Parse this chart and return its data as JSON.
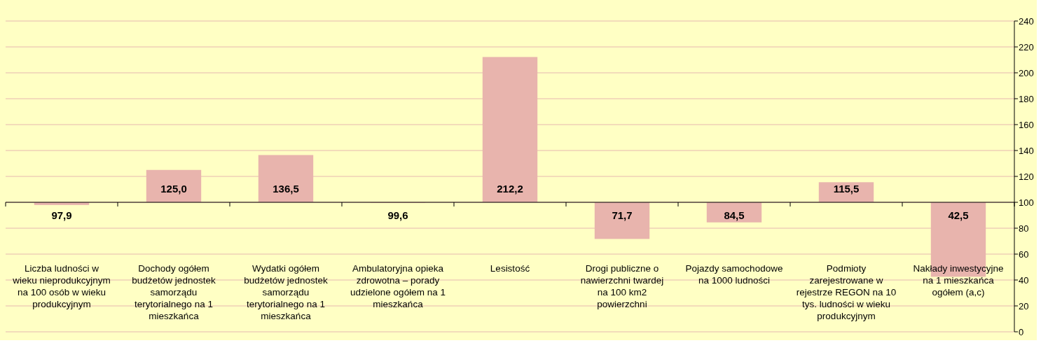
{
  "chart_data": {
    "type": "bar",
    "categories": [
      "Liczba ludności w wieku nieprodukcyjnym na 100 osób w wieku produkcyjnym",
      "Dochody ogółem budżetów jednostek samorządu terytorialnego na 1 mieszkańca",
      "Wydatki ogółem budżetów jednostek samorządu terytorialnego na 1 mieszkańca",
      "Ambulatoryjna opieka zdrowotna – porady udzielone ogółem na 1 mieszkańca",
      "Lesistość",
      "Drogi publiczne o nawierzchni twardej na 100 km2 powierzchni",
      "Pojazdy samochodowe na 1000 ludności",
      "Podmioty zarejestrowane w rejestrze REGON na 10 tys. ludności w wieku produkcyjnym",
      "Nakłady inwestycyjne na 1 mieszkańca ogółem (a,c)"
    ],
    "base": [
      100,
      100,
      100,
      100,
      100,
      100,
      100,
      100,
      100
    ],
    "values": [
      -2.1,
      25,
      36.5,
      -0.4,
      112.2,
      -28.3,
      -15.5,
      15.5,
      -57.5
    ],
    "value_labels": [
      "97,9",
      "125,0",
      "136,5",
      "99,6",
      "212,2",
      "71,7",
      "84,5",
      "115,5",
      "42,5"
    ],
    "color": "#e8b4ad",
    "ylim": [
      0,
      240
    ],
    "yticks": [
      0,
      20,
      40,
      60,
      80,
      100,
      120,
      140,
      160,
      180,
      200,
      220,
      240
    ],
    "ref_lines": [
      {
        "axis": "y",
        "value": 100,
        "color": "#000000"
      }
    ],
    "grid": "y"
  }
}
